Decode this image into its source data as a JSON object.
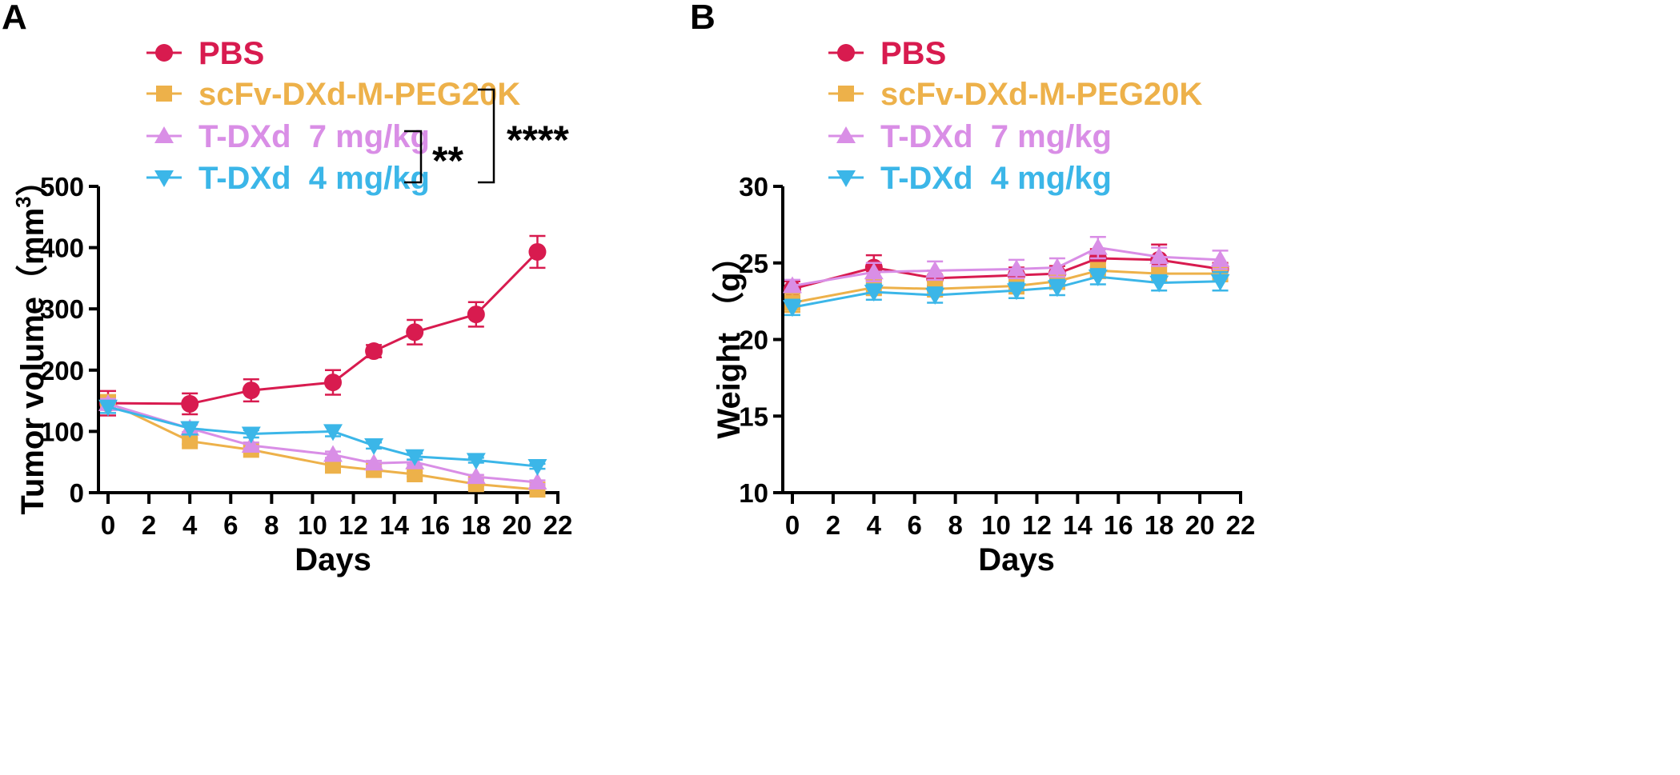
{
  "colors": {
    "PBS": "#d81b4f",
    "scFv": "#edb14a",
    "TDXd7": "#d98ee6",
    "TDXd4": "#3bb6e8"
  },
  "chart_data": [
    {
      "panel": "A",
      "type": "line",
      "xlabel": "Days",
      "ylabel": "Tumor volume（mm³）",
      "ylabel_main": "Tumor volume（mm",
      "ylabel_sup": "3",
      "ylabel_end": "）",
      "xlim": [
        0,
        22
      ],
      "ylim": [
        0,
        500
      ],
      "xticks": [
        0,
        2,
        4,
        6,
        8,
        10,
        12,
        14,
        16,
        18,
        20,
        22
      ],
      "yticks": [
        0,
        100,
        200,
        300,
        400,
        500
      ],
      "x": [
        0,
        4,
        7,
        11,
        13,
        15,
        18,
        21
      ],
      "series": [
        {
          "name": "PBS",
          "marker": "circle",
          "color_key": "PBS",
          "values": [
            146,
            145,
            167,
            180,
            231,
            262,
            291,
            393
          ],
          "errors": [
            20,
            17,
            18,
            20,
            10,
            20,
            20,
            26
          ]
        },
        {
          "name": "scFv-DXd-M-PEG20K",
          "marker": "square",
          "color_key": "scFv",
          "values": [
            148,
            84,
            70,
            44,
            37,
            30,
            14,
            5
          ],
          "errors": [
            8,
            5,
            5,
            5,
            4,
            4,
            3,
            2
          ]
        },
        {
          "name": "T-DXd  7 mg/kg",
          "marker": "triangle-up",
          "color_key": "TDXd7",
          "values": [
            145,
            105,
            77,
            62,
            48,
            50,
            26,
            17
          ],
          "errors": [
            8,
            6,
            5,
            5,
            4,
            4,
            3,
            3
          ]
        },
        {
          "name": "T-DXd  4 mg/kg",
          "marker": "triangle-down",
          "color_key": "TDXd4",
          "values": [
            140,
            105,
            96,
            100,
            77,
            59,
            53,
            43
          ],
          "errors": [
            10,
            10,
            6,
            8,
            5,
            5,
            4,
            4
          ]
        }
      ],
      "significance": [
        {
          "label": "**",
          "between": [
            "T-DXd  7 mg/kg",
            "T-DXd  4 mg/kg"
          ]
        },
        {
          "label": "****",
          "between": [
            "scFv-DXd-M-PEG20K",
            "T-DXd  4 mg/kg"
          ]
        }
      ],
      "legend": "top"
    },
    {
      "panel": "B",
      "type": "line",
      "xlabel": "Days",
      "ylabel": "Weight （g）",
      "xlim": [
        0,
        22
      ],
      "ylim": [
        10,
        30
      ],
      "xticks": [
        0,
        2,
        4,
        6,
        8,
        10,
        12,
        14,
        16,
        18,
        20,
        22
      ],
      "yticks": [
        10,
        15,
        20,
        25,
        30
      ],
      "x": [
        0,
        4,
        7,
        11,
        13,
        15,
        18,
        21
      ],
      "series": [
        {
          "name": "PBS",
          "marker": "circle",
          "color_key": "PBS",
          "values": [
            23.3,
            24.7,
            24.0,
            24.2,
            24.3,
            25.3,
            25.2,
            24.6
          ],
          "errors": [
            0.5,
            0.8,
            0.5,
            0.5,
            0.5,
            0.6,
            1.0,
            0.4
          ]
        },
        {
          "name": "scFv-DXd-M-PEG20K",
          "marker": "square",
          "color_key": "scFv",
          "values": [
            22.4,
            23.4,
            23.3,
            23.5,
            23.8,
            24.5,
            24.3,
            24.3
          ],
          "errors": [
            0.6,
            0.5,
            0.5,
            0.5,
            0.5,
            0.5,
            0.5,
            0.5
          ]
        },
        {
          "name": "T-DXd  7 mg/kg",
          "marker": "triangle-up",
          "color_key": "TDXd7",
          "values": [
            23.5,
            24.4,
            24.5,
            24.6,
            24.7,
            26.0,
            25.4,
            25.2
          ],
          "errors": [
            0.4,
            0.6,
            0.6,
            0.6,
            0.6,
            0.7,
            0.6,
            0.6
          ]
        },
        {
          "name": "T-DXd  4 mg/kg",
          "marker": "triangle-down",
          "color_key": "TDXd4",
          "values": [
            22.1,
            23.1,
            22.9,
            23.2,
            23.4,
            24.1,
            23.7,
            23.8
          ],
          "errors": [
            0.5,
            0.5,
            0.5,
            0.5,
            0.5,
            0.5,
            0.5,
            0.6
          ]
        }
      ],
      "legend": "top"
    }
  ]
}
